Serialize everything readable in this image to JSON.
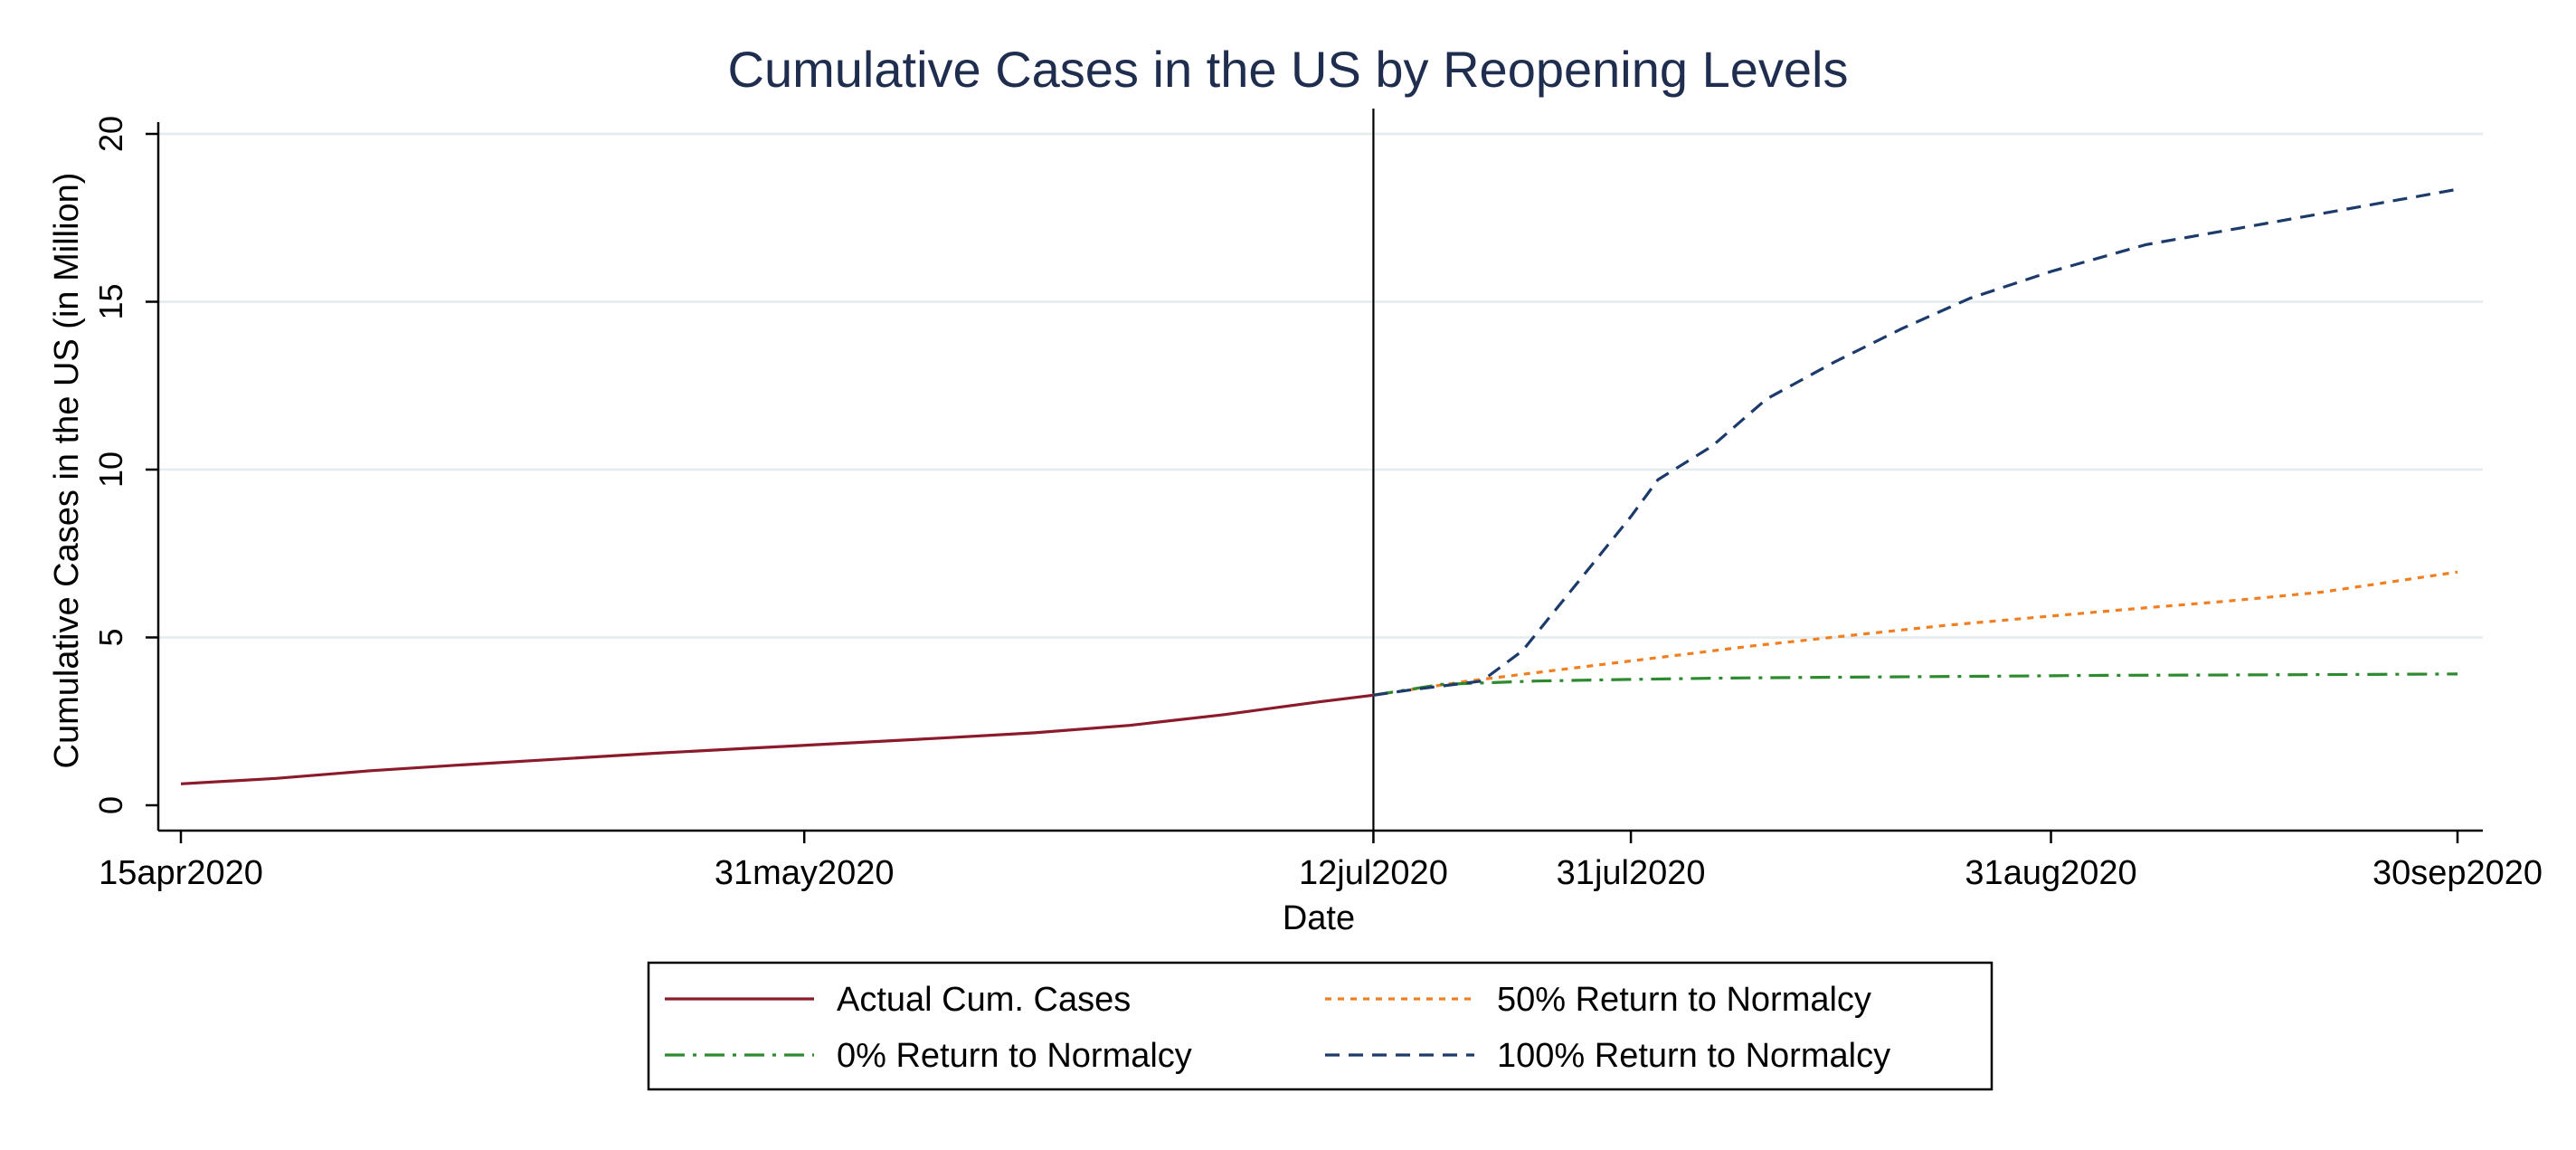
{
  "chart_data": {
    "type": "line",
    "title": "Cumulative Cases in the US by Reopening Levels",
    "xlabel": "Date",
    "ylabel": "Cumulative Cases in the US (in Million)",
    "xlim": [
      "2020-04-15",
      "2020-09-30"
    ],
    "ylim": [
      0,
      20
    ],
    "x_ticks": [
      {
        "date": "2020-04-15",
        "label": "15apr2020"
      },
      {
        "date": "2020-05-31",
        "label": "31may2020"
      },
      {
        "date": "2020-07-12",
        "label": "12jul2020"
      },
      {
        "date": "2020-07-31",
        "label": "31jul2020"
      },
      {
        "date": "2020-08-31",
        "label": "31aug2020"
      },
      {
        "date": "2020-09-30",
        "label": "30sep2020"
      }
    ],
    "y_ticks": [
      0,
      5,
      10,
      15,
      20
    ],
    "grid": "horizontal",
    "reference_line": {
      "date": "2020-07-12"
    },
    "legend_position": "bottom",
    "series": [
      {
        "name": "Actual Cum. Cases",
        "color": "#8b1a2b",
        "style": "solid",
        "points": [
          [
            "2020-04-15",
            0.64
          ],
          [
            "2020-04-22",
            0.8
          ],
          [
            "2020-04-29",
            1.03
          ],
          [
            "2020-05-06",
            1.21
          ],
          [
            "2020-05-13",
            1.38
          ],
          [
            "2020-05-20",
            1.55
          ],
          [
            "2020-05-27",
            1.7
          ],
          [
            "2020-06-03",
            1.85
          ],
          [
            "2020-06-10",
            2.0
          ],
          [
            "2020-06-17",
            2.16
          ],
          [
            "2020-06-24",
            2.38
          ],
          [
            "2020-07-01",
            2.7
          ],
          [
            "2020-07-05",
            2.92
          ],
          [
            "2020-07-08",
            3.08
          ],
          [
            "2020-07-12",
            3.28
          ]
        ]
      },
      {
        "name": "50% Return to Normalcy",
        "color": "#f07f22",
        "style": "dot",
        "points": [
          [
            "2020-07-12",
            3.28
          ],
          [
            "2020-07-19",
            3.7
          ],
          [
            "2020-07-26",
            4.05
          ],
          [
            "2020-08-02",
            4.4
          ],
          [
            "2020-08-09",
            4.75
          ],
          [
            "2020-08-16",
            5.05
          ],
          [
            "2020-08-23",
            5.35
          ],
          [
            "2020-08-30",
            5.6
          ],
          [
            "2020-09-06",
            5.85
          ],
          [
            "2020-09-13",
            6.08
          ],
          [
            "2020-09-20",
            6.35
          ],
          [
            "2020-09-30",
            6.95
          ]
        ]
      },
      {
        "name": "0% Return to Normalcy",
        "color": "#2e8a2e",
        "style": "dashdot",
        "points": [
          [
            "2020-07-12",
            3.28
          ],
          [
            "2020-07-17",
            3.6
          ],
          [
            "2020-07-24",
            3.7
          ],
          [
            "2020-07-31",
            3.75
          ],
          [
            "2020-08-07",
            3.79
          ],
          [
            "2020-08-14",
            3.81
          ],
          [
            "2020-08-21",
            3.83
          ],
          [
            "2020-08-28",
            3.85
          ],
          [
            "2020-09-04",
            3.87
          ],
          [
            "2020-09-11",
            3.88
          ],
          [
            "2020-09-18",
            3.89
          ],
          [
            "2020-09-30",
            3.91
          ]
        ]
      },
      {
        "name": "100% Return to Normalcy",
        "color": "#1c3b6b",
        "style": "dash",
        "points": [
          [
            "2020-07-12",
            3.28
          ],
          [
            "2020-07-15",
            3.45
          ],
          [
            "2020-07-20",
            3.7
          ],
          [
            "2020-07-23",
            4.6
          ],
          [
            "2020-07-27",
            6.6
          ],
          [
            "2020-07-31",
            8.6
          ],
          [
            "2020-08-02",
            9.7
          ],
          [
            "2020-08-06",
            10.7
          ],
          [
            "2020-08-10",
            12.1
          ],
          [
            "2020-08-15",
            13.2
          ],
          [
            "2020-08-20",
            14.2
          ],
          [
            "2020-08-25",
            15.1
          ],
          [
            "2020-08-31",
            15.9
          ],
          [
            "2020-09-07",
            16.7
          ],
          [
            "2020-09-14",
            17.2
          ],
          [
            "2020-09-21",
            17.7
          ],
          [
            "2020-09-30",
            18.35
          ]
        ]
      }
    ]
  }
}
